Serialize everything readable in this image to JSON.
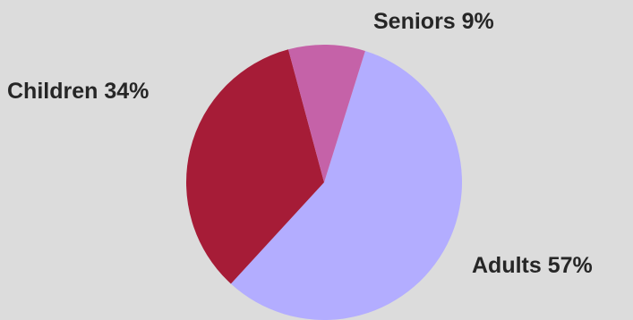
{
  "chart_data": {
    "type": "pie",
    "slices": [
      {
        "label": "Adults",
        "value": 57,
        "display": "Adults 57%",
        "color": "#b3adff"
      },
      {
        "label": "Children",
        "value": 34,
        "display": "Children 34%",
        "color": "#a61c37"
      },
      {
        "label": "Seniors",
        "value": 9,
        "display": "Seniors 9%",
        "color": "#c562a8"
      }
    ],
    "start": "top, clockwise from Seniors",
    "background": "#dcdcdc"
  }
}
